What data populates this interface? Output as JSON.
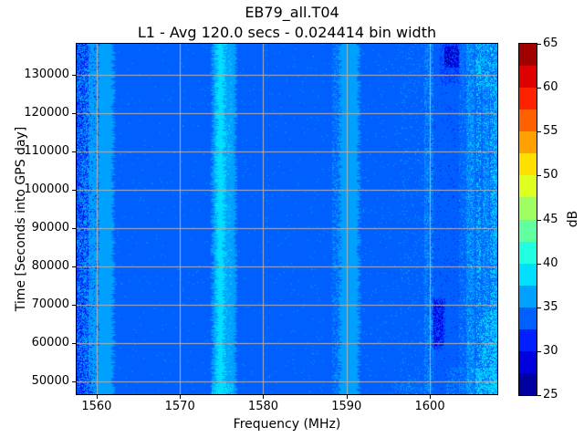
{
  "figure": {
    "background": "#ffffff",
    "text_color": "#000000"
  },
  "chart_data": {
    "type": "heatmap",
    "title": "EB79_all.T04",
    "subtitle": "L1 - Avg 120.0 secs - 0.024414 bin width",
    "xlabel": "Frequency (MHz)",
    "ylabel": "Time [Seconds into GPS day]",
    "avg_secs": 120.0,
    "bin_width_mhz": 0.024414,
    "x_range": [
      1557.6,
      1608.1
    ],
    "y_range": [
      46700,
      138100
    ],
    "x_ticks": [
      1560,
      1570,
      1580,
      1590,
      1600
    ],
    "y_ticks": [
      50000,
      60000,
      70000,
      80000,
      90000,
      100000,
      110000,
      120000,
      130000
    ],
    "grid": true,
    "grid_color": "#b0b0b0",
    "seed": 7,
    "colorbar": {
      "label": "dB",
      "min": 25,
      "max": 65,
      "ticks": [
        25,
        30,
        35,
        40,
        45,
        50,
        55,
        60,
        65
      ],
      "n_bins": 16,
      "colors_top_to_bottom": [
        "#a00000",
        "#df0000",
        "#ff2000",
        "#ff6000",
        "#ffa000",
        "#ffdf00",
        "#dfff20",
        "#a0ff60",
        "#60ffa0",
        "#20ffdf",
        "#00dfff",
        "#00a0ff",
        "#0060ff",
        "#0020ff",
        "#0000df",
        "#0000a0"
      ]
    },
    "background_color": "#0060ff",
    "background_level_db": 34,
    "signals": [
      {
        "freq_mhz": [
          1557.6,
          1562.0
        ],
        "level_db": 36,
        "note": "elevated band with dark speckle near left edge"
      },
      {
        "freq_mhz": [
          1573.9,
          1576.7
        ],
        "level_db": 37,
        "peak_db": 39,
        "note": "GPS L1 band with bright ragged core ~1575"
      },
      {
        "freq_mhz": [
          1589.2,
          1591.5
        ],
        "level_db": 36,
        "note": "elevated band"
      },
      {
        "freq_mhz": [
          1599.4,
          1600.4
        ],
        "level_db": 35.5,
        "note": "noisy speckled column"
      },
      {
        "freq_mhz": [
          1600.4,
          1603.5
        ],
        "level_db": 29,
        "time_ranges": [
          [
            58500,
            71500
          ],
          [
            132000,
            137500
          ]
        ],
        "note": "low-power dark patches"
      },
      {
        "freq_mhz": [
          1603.5,
          1608.1
        ],
        "level_db": 37,
        "note": "noisy region with intermittent bright streaks"
      }
    ],
    "stripes": [
      {
        "name": "left-band",
        "f0": 1557.6,
        "f1": 1562.0,
        "color": "#00a0ff",
        "jitter": 0.3
      },
      {
        "name": "gps-outer",
        "f0": 1573.9,
        "f1": 1576.7,
        "color": "#00a0ff",
        "jitter": 0.25
      },
      {
        "name": "gps-core",
        "f0": 1574.4,
        "f1": 1575.3,
        "color": "#00dfff",
        "jitter": 0.3
      },
      {
        "name": "band-1590",
        "f0": 1589.2,
        "f1": 1591.5,
        "color": "#00a0ff",
        "jitter": 0.3
      }
    ],
    "speckle_regions": [
      {
        "f": [
          1557.6,
          1559.0
        ],
        "color": "#0020ff",
        "density": 0.45
      },
      {
        "f": [
          1559.0,
          1560.3
        ],
        "color": "#0020ff",
        "density": 0.1
      },
      {
        "f": [
          1557.6,
          1558.4
        ],
        "color": "#0000df",
        "density": 0.1
      },
      {
        "f": [
          1557.6,
          1559.5
        ],
        "t": [
          46700,
          56000
        ],
        "color": "#0020ff",
        "density": 0.25
      },
      {
        "f": [
          1562.0,
          1573.9
        ],
        "color": "#00a0ff",
        "density": 0.008
      },
      {
        "f": [
          1576.7,
          1588.3
        ],
        "color": "#00a0ff",
        "density": 0.008
      },
      {
        "f": [
          1574.2,
          1576.2
        ],
        "color": "#00dfff",
        "density": 0.13
      },
      {
        "f": [
          1573.9,
          1576.4
        ],
        "t": [
          46700,
          49500
        ],
        "color": "#00dfff",
        "density": 0.5
      },
      {
        "f": [
          1588.3,
          1589.3
        ],
        "color": "#00a0ff",
        "density": 0.3
      },
      {
        "f": [
          1591.5,
          1596.5
        ],
        "color": "#00a0ff",
        "density": 0.015
      },
      {
        "f": [
          1596.5,
          1599.4
        ],
        "color": "#00a0ff",
        "density": 0.05
      },
      {
        "f": [
          1595.5,
          1599.4
        ],
        "t": [
          46700,
          50000
        ],
        "color": "#00a0ff",
        "density": 0.15
      },
      {
        "f": [
          1599.4,
          1600.4
        ],
        "color": "#00a0ff",
        "density": 0.4
      },
      {
        "f": [
          1599.8,
          1603.5
        ],
        "color": "#0020ff",
        "density": 0.04
      },
      {
        "f": [
          1601.3,
          1603.5
        ],
        "t": [
          128000,
          138100
        ],
        "color": "#0020ff",
        "density": 0.3
      },
      {
        "f": [
          1601.8,
          1603.4
        ],
        "t": [
          132000,
          137500
        ],
        "color": "#0000df",
        "density": 0.65
      },
      {
        "f": [
          1601.8,
          1603.4
        ],
        "t": [
          132500,
          137000
        ],
        "color": "#0000a0",
        "density": 0.25
      },
      {
        "f": [
          1600.4,
          1601.8
        ],
        "t": [
          58500,
          71500
        ],
        "color": "#0020ff",
        "density": 0.35
      },
      {
        "f": [
          1600.5,
          1601.6
        ],
        "t": [
          59500,
          71000
        ],
        "color": "#0000df",
        "density": 0.5
      },
      {
        "f": [
          1603.5,
          1608.1
        ],
        "color": "#00a0ff",
        "density": 0.18
      },
      {
        "f": [
          1604.4,
          1605.3
        ],
        "color": "#00a0ff",
        "density": 0.45
      },
      {
        "f": [
          1604.5,
          1605.2
        ],
        "color": "#00dfff",
        "density": 0.1
      },
      {
        "f": [
          1605.6,
          1606.1
        ],
        "color": "#00dfff",
        "density": 0.3
      },
      {
        "f": [
          1606.4,
          1607.1
        ],
        "color": "#00a0ff",
        "density": 0.35
      },
      {
        "f": [
          1606.4,
          1607.1
        ],
        "color": "#00dfff",
        "density": 0.12
      },
      {
        "f": [
          1607.3,
          1607.7
        ],
        "color": "#00dfff",
        "density": 0.35
      },
      {
        "f": [
          1607.7,
          1608.1
        ],
        "color": "#00a0ff",
        "density": 0.35
      },
      {
        "f": [
          1607.7,
          1608.1
        ],
        "color": "#00dfff",
        "density": 0.35
      },
      {
        "f": [
          1605.5,
          1608.1
        ],
        "t": [
          46700,
          53500
        ],
        "color": "#00dfff",
        "density": 0.5
      },
      {
        "f": [
          1602.0,
          1605.5
        ],
        "t": [
          46700,
          53500
        ],
        "color": "#00a0ff",
        "density": 0.2
      },
      {
        "f": [
          1606.2,
          1608.1
        ],
        "t": [
          54000,
          68000
        ],
        "color": "#00dfff",
        "density": 0.3
      },
      {
        "f": [
          1605.5,
          1607.2
        ],
        "t": [
          127000,
          138100
        ],
        "color": "#00dfff",
        "density": 0.25
      }
    ]
  }
}
